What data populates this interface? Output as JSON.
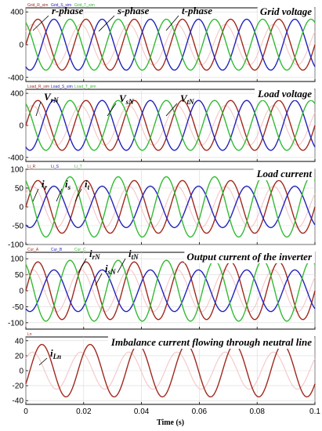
{
  "colors": {
    "r": "#a0291e",
    "s": "#2222bb",
    "t": "#33bb33",
    "grid": "#d9d9d9",
    "ghost": "#f4c6c6"
  },
  "figure": {
    "xlabel": "Time (s)"
  },
  "chart_data": [
    {
      "type": "line",
      "title": "Grid voltage",
      "x_range": [
        0,
        0.1
      ],
      "ylim": [
        -450,
        450
      ],
      "yticks": [
        "400",
        "0",
        "-400"
      ],
      "frequency_hz": 60,
      "legend": [
        "Grid_R_sim",
        "Grid_S_sim",
        "Grid_T_sim"
      ],
      "annotations": [
        {
          "label": "r-phase",
          "sub": ""
        },
        {
          "label": "s-phase",
          "sub": ""
        },
        {
          "label": "t-phase",
          "sub": ""
        }
      ],
      "series": [
        {
          "name": "Grid_R_sim",
          "amplitude": 311,
          "phase_deg": 0,
          "color": "r"
        },
        {
          "name": "Grid_S_sim",
          "amplitude": 311,
          "phase_deg": -120,
          "color": "s"
        },
        {
          "name": "Grid_T_sim",
          "amplitude": 311,
          "phase_deg": 120,
          "color": "t"
        }
      ]
    },
    {
      "type": "line",
      "title": "Load voltage",
      "x_range": [
        0,
        0.1
      ],
      "ylim": [
        -450,
        450
      ],
      "yticks": [
        "400",
        "0",
        "-400"
      ],
      "frequency_hz": 60,
      "legend": [
        "Load_R_sim",
        "Load_S_sim",
        "Load_T_sim"
      ],
      "annotations": [
        {
          "label": "V",
          "sub": "rN"
        },
        {
          "label": "V",
          "sub": "sN"
        },
        {
          "label": "V",
          "sub": "tN"
        }
      ],
      "series": [
        {
          "name": "Load_R_sim",
          "amplitude": 311,
          "phase_deg": 0,
          "color": "r"
        },
        {
          "name": "Load_S_sim",
          "amplitude": 311,
          "phase_deg": -120,
          "color": "s"
        },
        {
          "name": "Load_T_sim",
          "amplitude": 311,
          "phase_deg": 120,
          "color": "t"
        }
      ]
    },
    {
      "type": "line",
      "title": "Load current",
      "x_range": [
        0,
        0.1
      ],
      "ylim": [
        -100,
        100
      ],
      "yticks": [
        "100",
        "50",
        "0",
        "-50",
        "-100"
      ],
      "frequency_hz": 60,
      "legend": [
        "Li_R",
        "Li_S",
        "Li_T"
      ],
      "annotations": [
        {
          "label": "i",
          "sub": "r"
        },
        {
          "label": "i",
          "sub": "s"
        },
        {
          "label": "i",
          "sub": "t"
        }
      ],
      "series": [
        {
          "name": "Li_R",
          "amplitude": 70,
          "phase_deg": 0,
          "color": "r"
        },
        {
          "name": "Li_S",
          "amplitude": 55,
          "phase_deg": -120,
          "color": "s"
        },
        {
          "name": "Li_T",
          "amplitude": 80,
          "phase_deg": 120,
          "color": "t"
        }
      ]
    },
    {
      "type": "line",
      "title": "Output current of the inverter",
      "x_range": [
        0,
        0.1
      ],
      "ylim": [
        -120,
        120
      ],
      "yticks": [
        "100",
        "50",
        "0",
        "-50",
        "-100"
      ],
      "frequency_hz": 60,
      "legend": [
        "Cur_A",
        "Cur_B",
        "Cur_C"
      ],
      "annotations": [
        {
          "label": "i",
          "sub": "rN"
        },
        {
          "label": "i",
          "sub": "sN"
        },
        {
          "label": "i",
          "sub": "tN"
        }
      ],
      "series": [
        {
          "name": "Cur_A",
          "amplitude": 90,
          "phase_deg": 0,
          "color": "r"
        },
        {
          "name": "Cur_B",
          "amplitude": 65,
          "phase_deg": -120,
          "color": "s"
        },
        {
          "name": "Cur_C",
          "amplitude": 95,
          "phase_deg": 120,
          "color": "t"
        }
      ]
    },
    {
      "type": "line",
      "title": "Imbalance current flowing through neutral line",
      "x_range": [
        0,
        0.1
      ],
      "ylim": [
        -45,
        45
      ],
      "yticks": [
        "40",
        "20",
        "0",
        "-20",
        "-40"
      ],
      "frequency_hz": 60,
      "legend": [
        "Ln"
      ],
      "annotations": [
        {
          "label": "i",
          "sub": "Ln"
        }
      ],
      "series": [
        {
          "name": "Ln",
          "amplitude": 35,
          "phase_deg": -30,
          "color": "r"
        }
      ]
    }
  ],
  "xticks": [
    "0",
    "0.02",
    "0.04",
    "0.06",
    "0.08",
    "0.1"
  ]
}
